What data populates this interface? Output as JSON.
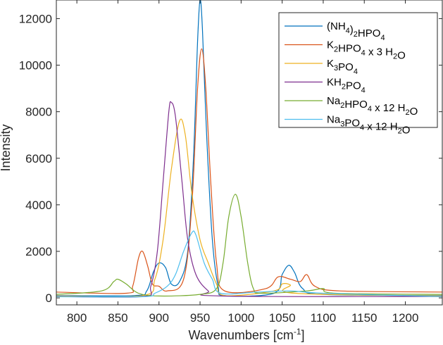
{
  "chart_data": {
    "type": "line",
    "title": "",
    "xlabel": "Wavenumbers [cm-1]",
    "ylabel": "Intensity",
    "xlim": [
      775,
      1245
    ],
    "ylim": [
      -300,
      12800
    ],
    "xticks": [
      800,
      850,
      900,
      950,
      1000,
      1050,
      1100,
      1150,
      1200
    ],
    "yticks": [
      0,
      2000,
      4000,
      6000,
      8000,
      10000,
      12000
    ],
    "grid": false,
    "legend_position": "upper right",
    "series": [
      {
        "name": "(NH4)2HPO4",
        "color": "#0072BD",
        "peaks": [
          {
            "x": 900,
            "y": 1500
          },
          {
            "x": 950,
            "y": 12800
          },
          {
            "x": 1058,
            "y": 1400
          }
        ],
        "points": [
          [
            775,
            100
          ],
          [
            870,
            100
          ],
          [
            885,
            300
          ],
          [
            893,
            1100
          ],
          [
            900,
            1500
          ],
          [
            908,
            1300
          ],
          [
            915,
            600
          ],
          [
            925,
            700
          ],
          [
            935,
            2000
          ],
          [
            942,
            6000
          ],
          [
            947,
            11000
          ],
          [
            950,
            12800
          ],
          [
            953,
            11500
          ],
          [
            958,
            7000
          ],
          [
            965,
            2500
          ],
          [
            972,
            500
          ],
          [
            980,
            100
          ],
          [
            1040,
            200
          ],
          [
            1050,
            1000
          ],
          [
            1058,
            1400
          ],
          [
            1065,
            1100
          ],
          [
            1075,
            400
          ],
          [
            1100,
            150
          ],
          [
            1245,
            100
          ]
        ]
      },
      {
        "name": "K2HPO4 x 3 H2O",
        "color": "#D95319",
        "peaks": [
          {
            "x": 880,
            "y": 2000
          },
          {
            "x": 952,
            "y": 10700
          },
          {
            "x": 1080,
            "y": 1000
          }
        ],
        "points": [
          [
            775,
            250
          ],
          [
            860,
            200
          ],
          [
            868,
            500
          ],
          [
            875,
            1700
          ],
          [
            880,
            2000
          ],
          [
            886,
            1400
          ],
          [
            892,
            600
          ],
          [
            900,
            500
          ],
          [
            910,
            300
          ],
          [
            930,
            800
          ],
          [
            940,
            4000
          ],
          [
            947,
            9000
          ],
          [
            952,
            10700
          ],
          [
            957,
            9000
          ],
          [
            963,
            5000
          ],
          [
            970,
            1500
          ],
          [
            980,
            300
          ],
          [
            1030,
            400
          ],
          [
            1045,
            900
          ],
          [
            1060,
            800
          ],
          [
            1072,
            700
          ],
          [
            1080,
            1000
          ],
          [
            1090,
            500
          ],
          [
            1120,
            300
          ],
          [
            1245,
            250
          ]
        ]
      },
      {
        "name": "K3PO4",
        "color": "#EDB120",
        "peaks": [
          {
            "x": 925,
            "y": 7600
          },
          {
            "x": 1055,
            "y": 600
          }
        ],
        "points": [
          [
            775,
            80
          ],
          [
            880,
            100
          ],
          [
            895,
            800
          ],
          [
            905,
            2500
          ],
          [
            915,
            5500
          ],
          [
            925,
            7600
          ],
          [
            932,
            7000
          ],
          [
            940,
            4500
          ],
          [
            950,
            2500
          ],
          [
            960,
            1500
          ],
          [
            970,
            600
          ],
          [
            980,
            100
          ],
          [
            1040,
            300
          ],
          [
            1050,
            600
          ],
          [
            1060,
            550
          ],
          [
            1065,
            200
          ],
          [
            1245,
            80
          ]
        ]
      },
      {
        "name": "KH2PO4",
        "color": "#7E2F8E",
        "peaks": [
          {
            "x": 915,
            "y": 8400
          }
        ],
        "points": [
          [
            775,
            60
          ],
          [
            880,
            60
          ],
          [
            890,
            500
          ],
          [
            898,
            2000
          ],
          [
            905,
            5000
          ],
          [
            912,
            8000
          ],
          [
            915,
            8400
          ],
          [
            920,
            7800
          ],
          [
            928,
            5000
          ],
          [
            935,
            2500
          ],
          [
            945,
            1000
          ],
          [
            960,
            300
          ],
          [
            975,
            80
          ],
          [
            1245,
            60
          ]
        ]
      },
      {
        "name": "Na2HPO4 x 12 H2O",
        "color": "#77AC30",
        "peaks": [
          {
            "x": 850,
            "y": 800
          },
          {
            "x": 993,
            "y": 4450
          },
          {
            "x": 1100,
            "y": 400
          }
        ],
        "points": [
          [
            775,
            150
          ],
          [
            830,
            300
          ],
          [
            845,
            700
          ],
          [
            850,
            800
          ],
          [
            860,
            600
          ],
          [
            875,
            200
          ],
          [
            900,
            80
          ],
          [
            950,
            150
          ],
          [
            970,
            400
          ],
          [
            978,
            1500
          ],
          [
            985,
            3500
          ],
          [
            993,
            4450
          ],
          [
            1000,
            3500
          ],
          [
            1008,
            1500
          ],
          [
            1015,
            400
          ],
          [
            1025,
            200
          ],
          [
            1080,
            300
          ],
          [
            1100,
            400
          ],
          [
            1115,
            200
          ],
          [
            1245,
            150
          ]
        ]
      },
      {
        "name": "Na3PO4 x 12 H2O",
        "color": "#4DBEEE",
        "peaks": [
          {
            "x": 943,
            "y": 2800
          }
        ],
        "points": [
          [
            775,
            50
          ],
          [
            880,
            50
          ],
          [
            895,
            200
          ],
          [
            910,
            500
          ],
          [
            920,
            1000
          ],
          [
            930,
            2000
          ],
          [
            940,
            2800
          ],
          [
            945,
            2700
          ],
          [
            955,
            1500
          ],
          [
            965,
            800
          ],
          [
            975,
            200
          ],
          [
            1020,
            250
          ],
          [
            1060,
            300
          ],
          [
            1100,
            200
          ],
          [
            1245,
            50
          ]
        ]
      }
    ]
  }
}
